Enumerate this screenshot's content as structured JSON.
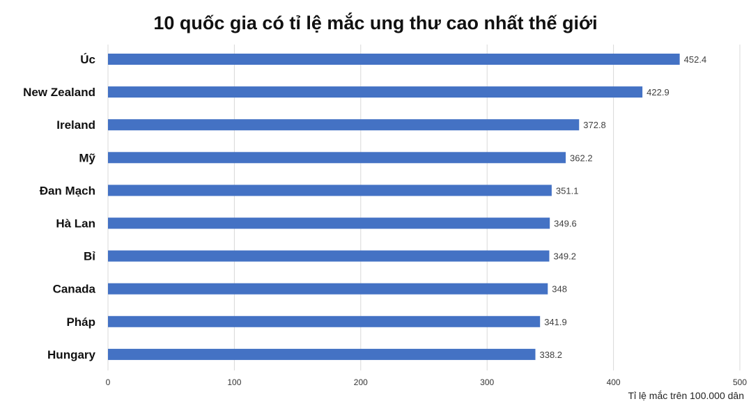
{
  "chart_data": {
    "type": "bar",
    "orientation": "horizontal",
    "title": "10 quốc gia có tỉ lệ mắc ung thư cao nhất thế giới",
    "xlabel": "Tỉ lệ mắc trên 100.000 dân",
    "ylabel": "",
    "xlim": [
      0,
      500
    ],
    "xticks": [
      0,
      100,
      200,
      300,
      400,
      500
    ],
    "grid": "vertical",
    "legend": "none",
    "bar_color": "#4472C4",
    "categories": [
      "Úc",
      "New Zealand",
      "Ireland",
      "Mỹ",
      "Đan Mạch",
      "Hà Lan",
      "Bỉ",
      "Canada",
      "Pháp",
      "Hungary"
    ],
    "values": [
      452.4,
      422.9,
      372.8,
      362.2,
      351.1,
      349.6,
      349.2,
      348,
      341.9,
      338.2
    ],
    "value_labels": [
      "452.4",
      "422.9",
      "372.8",
      "362.2",
      "351.1",
      "349.6",
      "349.2",
      "348",
      "341.9",
      "338.2"
    ]
  }
}
